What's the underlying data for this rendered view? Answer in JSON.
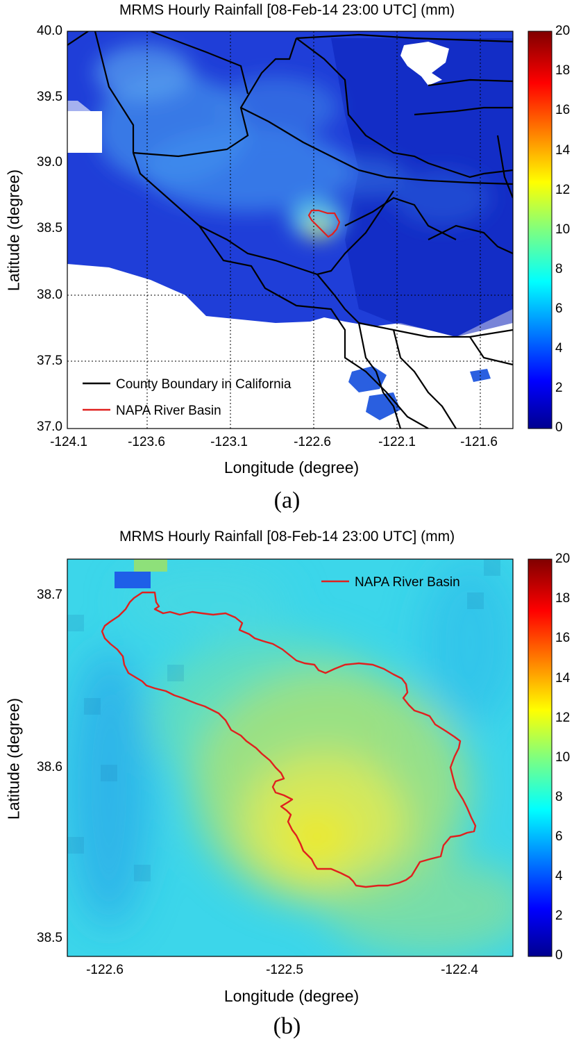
{
  "panels": [
    {
      "id": "a",
      "title": "MRMS Hourly Rainfall [08-Feb-14 23:00 UTC] (mm)",
      "panel_label": "(a)",
      "xlabel": "Longitude (degree)",
      "ylabel": "Latitude (degree)",
      "xticks": [
        "-124.1",
        "-123.6",
        "-123.1",
        "-122.6",
        "-122.1",
        "-121.6"
      ],
      "yticks": [
        "40.0",
        "39.5",
        "39.0",
        "38.5",
        "38.0",
        "37.5",
        "37.0"
      ],
      "legend": [
        "County Boundary in California",
        "NAPA River Basin"
      ]
    },
    {
      "id": "b",
      "title": "MRMS Hourly Rainfall [08-Feb-14 23:00 UTC] (mm)",
      "panel_label": "(b)",
      "xlabel": "Longitude (degree)",
      "ylabel": "Latitude (degree)",
      "xticks": [
        "-122.6",
        "-122.5",
        "-122.4"
      ],
      "yticks": [
        "38.7",
        "38.6",
        "38.5"
      ],
      "legend": [
        "NAPA River Basin"
      ]
    }
  ],
  "colorbar": {
    "ticks": [
      "20",
      "18",
      "16",
      "14",
      "12",
      "10",
      "8",
      "6",
      "4",
      "2",
      "0"
    ],
    "range": [
      0,
      20
    ],
    "colormap": "jet"
  },
  "colors": {
    "county_boundary": "#000000",
    "basin_boundary": "#e0201e",
    "no_data": "#ffffff"
  }
}
